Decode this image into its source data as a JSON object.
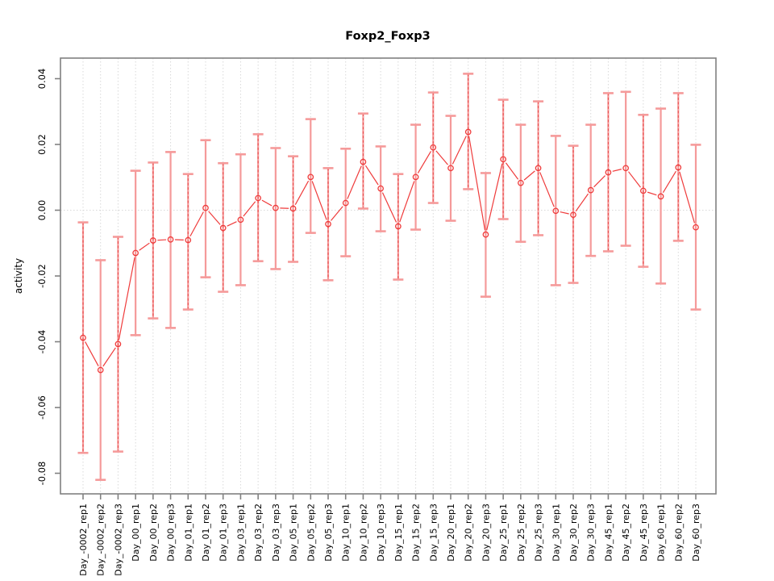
{
  "title": "Foxp2_Foxp3",
  "chart_data": {
    "type": "scatter",
    "title": "Foxp2_Foxp3",
    "xlabel": "",
    "ylabel": "activity",
    "ylim": [
      -0.086,
      0.046
    ],
    "ytick_values": [
      0.04,
      0.02,
      0.0,
      -0.02,
      -0.04,
      -0.06,
      -0.08
    ],
    "ytick_labels": [
      "0.04",
      "0.02",
      "0.00",
      "-0.02",
      "-0.04",
      "-0.06",
      "-0.08"
    ],
    "grid": "vertical dotted gridline at every category; horizontal dotted line at y=0; full box around plot",
    "legend_position": "none",
    "point_style": "open red circles connected by thin red line, light-red error bars with caps",
    "categories": [
      "Day_-0002_rep1",
      "Day_-0002_rep2",
      "Day_-0002_rep3",
      "Day_00_rep1",
      "Day_00_rep2",
      "Day_00_rep3",
      "Day_01_rep1",
      "Day_01_rep2",
      "Day_01_rep3",
      "Day_03_rep1",
      "Day_03_rep2",
      "Day_03_rep3",
      "Day_05_rep1",
      "Day_05_rep2",
      "Day_05_rep3",
      "Day_10_rep1",
      "Day_10_rep2",
      "Day_10_rep3",
      "Day_15_rep1",
      "Day_15_rep2",
      "Day_15_rep3",
      "Day_20_rep1",
      "Day_20_rep2",
      "Day_20_rep3",
      "Day_25_rep1",
      "Day_25_rep2",
      "Day_25_rep3",
      "Day_30_rep1",
      "Day_30_rep2",
      "Day_30_rep3",
      "Day_45_rep1",
      "Day_45_rep2",
      "Day_45_rep3",
      "Day_60_rep1",
      "Day_60_rep2",
      "Day_60_rep3"
    ],
    "series": [
      {
        "name": "activity",
        "values": [
          -0.0388,
          -0.0486,
          -0.0407,
          -0.013,
          -0.0092,
          -0.0089,
          -0.0091,
          0.0007,
          -0.0054,
          -0.0029,
          0.0037,
          0.0007,
          0.0005,
          0.0101,
          -0.0042,
          0.0022,
          0.0147,
          0.0066,
          -0.0049,
          0.0101,
          0.0191,
          0.0128,
          0.0238,
          -0.0074,
          0.0155,
          0.0083,
          0.0128,
          -0.0002,
          -0.0014,
          0.0061,
          0.0115,
          0.0128,
          0.0059,
          0.0042,
          0.013,
          -0.0052
        ],
        "upper": [
          -0.0037,
          -0.0152,
          -0.0081,
          0.012,
          0.0145,
          0.0177,
          0.011,
          0.0213,
          0.0143,
          0.017,
          0.0231,
          0.0189,
          0.0164,
          0.0277,
          0.0128,
          0.0187,
          0.0294,
          0.0194,
          0.011,
          0.026,
          0.0358,
          0.0287,
          0.0415,
          0.0113,
          0.0336,
          0.026,
          0.0331,
          0.0226,
          0.0196,
          0.026,
          0.0356,
          0.036,
          0.029,
          0.0309,
          0.0356,
          0.0199
        ],
        "lower": [
          -0.0738,
          -0.082,
          -0.0734,
          -0.038,
          -0.0329,
          -0.0358,
          -0.0302,
          -0.0204,
          -0.0248,
          -0.0228,
          -0.0155,
          -0.0179,
          -0.0157,
          -0.0069,
          -0.0213,
          -0.014,
          0.0005,
          -0.0064,
          -0.0211,
          -0.0059,
          0.0022,
          -0.0032,
          0.0064,
          -0.0263,
          -0.0027,
          -0.0096,
          -0.0076,
          -0.0228,
          -0.0221,
          -0.0139,
          -0.0125,
          -0.0108,
          -0.0172,
          -0.0223,
          -0.0093,
          -0.0302
        ]
      }
    ],
    "colors": {
      "point": "#ef3b3b",
      "line": "#ef3b3b",
      "error_bar": "#f59a9a",
      "error_dash": "#e84a4a",
      "grid": "#d9d9d9",
      "box": "#808080",
      "text": "#000000"
    }
  }
}
